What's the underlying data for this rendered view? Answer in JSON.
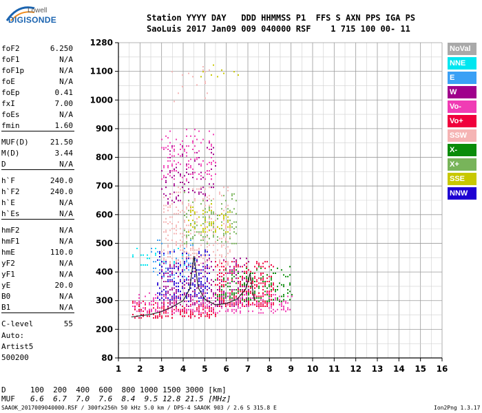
{
  "logo": {
    "line1": "Lowell",
    "line2": "DIGISONDE"
  },
  "header": {
    "row1": "Station YYYY DAY   DDD HHMMSS P1  FFS S AXN PPS IGA PS",
    "row2": "SaoLuis 2017 Jan09 009 040000 RSF    1 715 100 00- 11"
  },
  "params": [
    {
      "k": "foF2",
      "v": "6.250"
    },
    {
      "k": "foF1",
      "v": "N/A"
    },
    {
      "k": "foF1p",
      "v": "N/A"
    },
    {
      "k": "foE",
      "v": "N/A"
    },
    {
      "k": "foEp",
      "v": "0.41"
    },
    {
      "k": "fxI",
      "v": "7.00"
    },
    {
      "k": "foEs",
      "v": "N/A"
    },
    {
      "k": "fmin",
      "v": "1.60"
    },
    {
      "k": "MUF(D)",
      "v": "21.50"
    },
    {
      "k": "M(D)",
      "v": "3.44"
    },
    {
      "k": "D",
      "v": "N/A"
    },
    {
      "k": "h`F",
      "v": "240.0"
    },
    {
      "k": "h`F2",
      "v": "240.0"
    },
    {
      "k": "h`E",
      "v": "N/A"
    },
    {
      "k": "h`Es",
      "v": "N/A"
    },
    {
      "k": "hmF2",
      "v": "N/A"
    },
    {
      "k": "hmF1",
      "v": "N/A"
    },
    {
      "k": "hmE",
      "v": "110.0"
    },
    {
      "k": "yF2",
      "v": "N/A"
    },
    {
      "k": "yF1",
      "v": "N/A"
    },
    {
      "k": "yE",
      "v": "20.0"
    },
    {
      "k": "B0",
      "v": "N/A"
    },
    {
      "k": "B1",
      "v": "N/A"
    },
    {
      "k": "C-level",
      "v": "55"
    }
  ],
  "autoscaling": {
    "line1": "Auto:",
    "line2": "Artist5",
    "line3": "500200"
  },
  "legend": [
    {
      "label": "NoVal",
      "color": "#a9a9a9"
    },
    {
      "label": "NNE",
      "color": "#00e6f0"
    },
    {
      "label": "E",
      "color": "#3aa0f5"
    },
    {
      "label": "W",
      "color": "#a0008c"
    },
    {
      "label": "Vo-",
      "color": "#f03cb4"
    },
    {
      "label": "Vo+",
      "color": "#f0003c"
    },
    {
      "label": "SSW",
      "color": "#f5b4b4"
    },
    {
      "label": "X-",
      "color": "#0a8c0a"
    },
    {
      "label": "X+",
      "color": "#78b45a"
    },
    {
      "label": "SSE",
      "color": "#c8c800"
    },
    {
      "label": "NNW",
      "color": "#1e00d2"
    }
  ],
  "mufline": {
    "d_label": "D",
    "muf_label": "MUF",
    "d_values": "100  200  400  600  800 1000 1500 3000 [km]",
    "muf_values": "6.6  6.7  7.0  7.6  8.4  9.5 12.8 21.5 [MHz]"
  },
  "footer": {
    "left": "SAAOK_2017009040000.RSF / 300fx256h 50 kHz 5.0 km / DPS-4 SAAOK 903 / 2.6 S 315.8 E",
    "right": "Ion2Png 1.3.17"
  },
  "chart_data": {
    "type": "scatter",
    "x_ticks": [
      "1",
      "2",
      "3",
      "4",
      "5",
      "6",
      "7",
      "8",
      "9",
      "10",
      "11",
      "12",
      "13",
      "14",
      "15",
      "16"
    ],
    "y_ticks": [
      "80",
      "200",
      "300",
      "400",
      "500",
      "600",
      "700",
      "800",
      "900",
      "1000",
      "1100",
      "1280"
    ],
    "xlim": [
      1,
      16
    ],
    "y_tick_values": [
      80,
      200,
      300,
      400,
      500,
      600,
      700,
      800,
      900,
      1000,
      1100,
      1280
    ],
    "grid": true,
    "legend_position": "right",
    "trace": {
      "x": [
        1.6,
        2.0,
        2.5,
        3.0,
        3.5,
        4.0,
        4.3,
        4.5,
        4.7,
        5.0,
        5.5,
        6.0,
        6.5,
        6.9,
        7.1,
        7.3
      ],
      "y": [
        243,
        247,
        252,
        262,
        278,
        300,
        340,
        455,
        345,
        305,
        285,
        290,
        305,
        340,
        395,
        300
      ]
    },
    "echo_regions": [
      {
        "name": "Vo+",
        "x": [
          1.6,
          5.5
        ],
        "y": [
          240,
          300
        ],
        "density": 0.55
      },
      {
        "name": "Vo+",
        "x": [
          5.5,
          8.2
        ],
        "y": [
          280,
          440
        ],
        "density": 0.6
      },
      {
        "name": "Vo-",
        "x": [
          1.6,
          9.0
        ],
        "y": [
          260,
          330
        ],
        "density": 0.35
      },
      {
        "name": "NNW",
        "x": [
          2.8,
          5.2
        ],
        "y": [
          300,
          480
        ],
        "density": 0.35
      },
      {
        "name": "W",
        "x": [
          3.0,
          7.0
        ],
        "y": [
          280,
          460
        ],
        "density": 0.25
      },
      {
        "name": "SSW",
        "x": [
          3.0,
          6.2
        ],
        "y": [
          420,
          700
        ],
        "density": 0.22
      },
      {
        "name": "X-",
        "x": [
          5.5,
          9.0
        ],
        "y": [
          300,
          420
        ],
        "density": 0.25
      },
      {
        "name": "X+",
        "x": [
          4.0,
          6.5
        ],
        "y": [
          500,
          680
        ],
        "density": 0.18
      },
      {
        "name": "SSE",
        "x": [
          4.2,
          6.2
        ],
        "y": [
          540,
          640
        ],
        "density": 0.2
      },
      {
        "name": "NNE",
        "x": [
          1.6,
          4.0
        ],
        "y": [
          420,
          500
        ],
        "density": 0.12
      },
      {
        "name": "E",
        "x": [
          2.5,
          4.5
        ],
        "y": [
          380,
          520
        ],
        "density": 0.12
      },
      {
        "name": "Vo-",
        "x": [
          3.0,
          5.5
        ],
        "y": [
          720,
          900
        ],
        "density": 0.2
      },
      {
        "name": "W",
        "x": [
          3.0,
          5.5
        ],
        "y": [
          640,
          860
        ],
        "density": 0.1
      },
      {
        "name": "SSE",
        "x": [
          4.5,
          6.5
        ],
        "y": [
          1080,
          1160
        ],
        "density": 0.05
      },
      {
        "name": "SSW",
        "x": [
          3.5,
          5.5
        ],
        "y": [
          980,
          1140
        ],
        "density": 0.04
      }
    ]
  }
}
